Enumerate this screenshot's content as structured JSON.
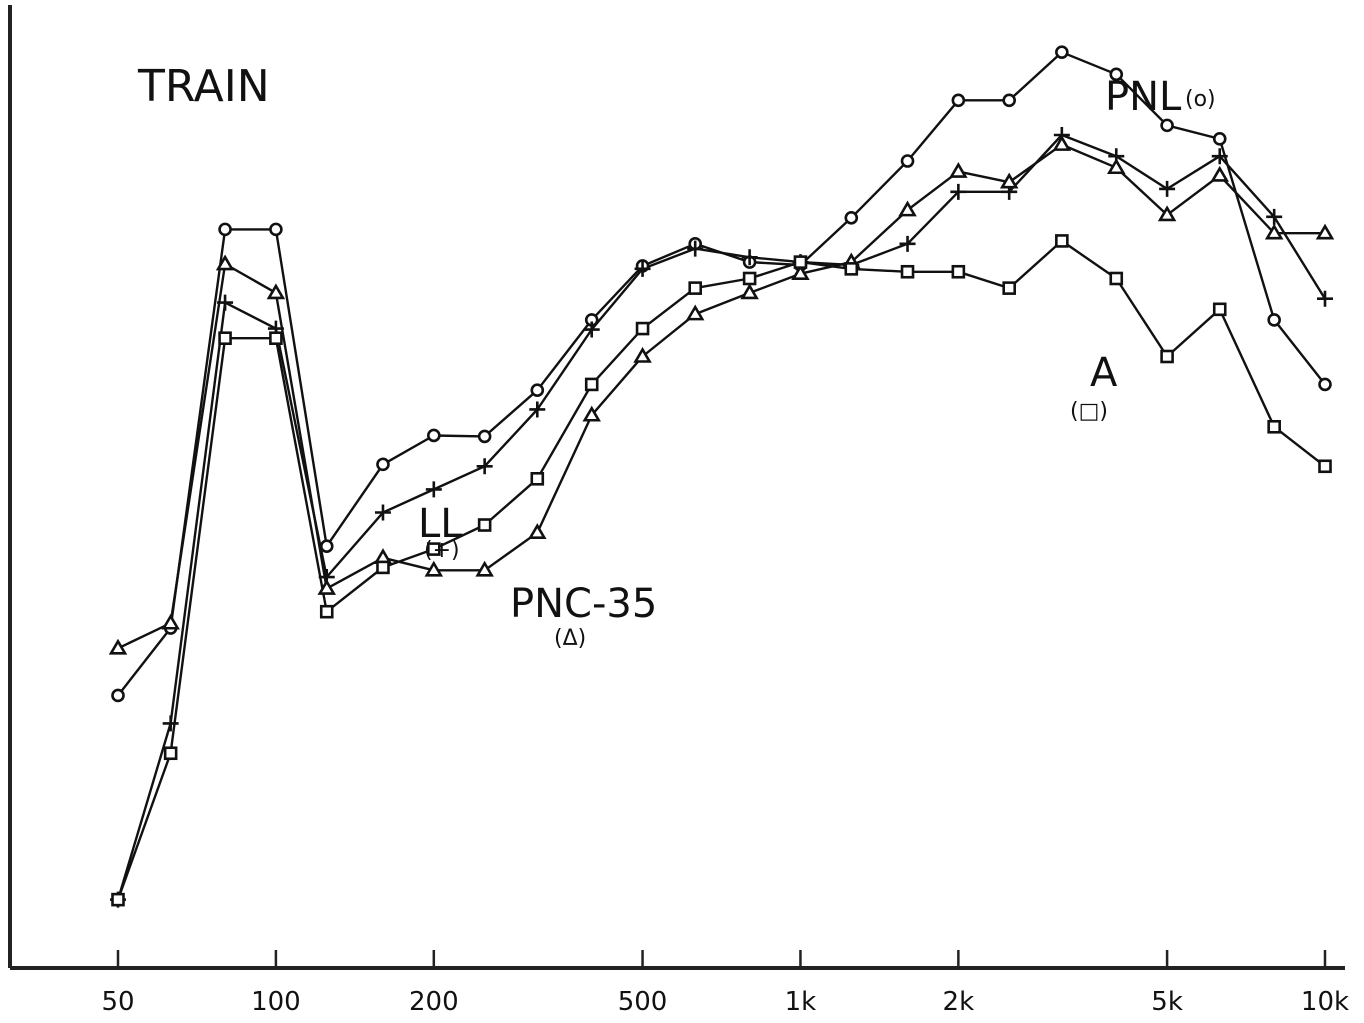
{
  "chart_data": {
    "type": "line",
    "title": "TRAIN",
    "xlabel": "",
    "ylabel": "",
    "x_scale": "log",
    "xlim": [
      50,
      10000
    ],
    "ylim": [
      0,
      100
    ],
    "grid": false,
    "x_ticks": [
      {
        "value": 50,
        "label": "50"
      },
      {
        "value": 100,
        "label": "100"
      },
      {
        "value": 200,
        "label": "200"
      },
      {
        "value": 500,
        "label": "500"
      },
      {
        "value": 1000,
        "label": "1k"
      },
      {
        "value": 2000,
        "label": "2k"
      },
      {
        "value": 5000,
        "label": "5k"
      },
      {
        "value": 10000,
        "label": "10k"
      }
    ],
    "x": [
      50,
      63,
      80,
      100,
      125,
      160,
      200,
      250,
      315,
      400,
      500,
      630,
      800,
      1000,
      1250,
      1600,
      2000,
      2500,
      3150,
      4000,
      5000,
      6300,
      8000,
      10000
    ],
    "series": [
      {
        "name": "PNL",
        "sublabel": "(o)",
        "marker": "circle",
        "values": [
          28.3,
          35.3,
          76.7,
          76.7,
          43.8,
          52.3,
          55.3,
          55.2,
          60.0,
          67.3,
          72.9,
          75.2,
          73.3,
          73.0,
          77.9,
          83.8,
          90.1,
          90.1,
          95.1,
          92.8,
          87.5,
          86.1,
          67.3,
          60.6
        ]
      },
      {
        "name": "LL",
        "sublabel": "(+)",
        "marker": "plus",
        "values": [
          7.1,
          25.4,
          69.1,
          66.4,
          40.6,
          47.3,
          49.7,
          52.1,
          58.0,
          66.3,
          72.6,
          74.7,
          73.8,
          73.3,
          73.0,
          75.2,
          80.6,
          80.6,
          86.5,
          84.3,
          80.9,
          84.3,
          78.0,
          69.5
        ]
      },
      {
        "name": "PNC-35",
        "sublabel": "(Δ)",
        "marker": "triangle",
        "values": [
          33.2,
          35.8,
          73.1,
          70.1,
          39.4,
          42.6,
          41.3,
          41.3,
          45.2,
          57.4,
          63.5,
          67.9,
          70.1,
          72.1,
          73.3,
          78.7,
          82.7,
          81.6,
          85.5,
          83.1,
          78.2,
          82.3,
          76.3,
          76.3
        ]
      },
      {
        "name": "A",
        "sublabel": "(□)",
        "marker": "square",
        "values": [
          7.1,
          22.3,
          65.4,
          65.4,
          37.0,
          41.6,
          43.5,
          46.0,
          50.8,
          60.6,
          66.4,
          70.6,
          71.6,
          73.3,
          72.6,
          72.3,
          72.3,
          70.6,
          75.5,
          71.6,
          63.5,
          68.4,
          56.2,
          52.1
        ]
      }
    ],
    "annotations": [
      {
        "series": "PNL",
        "text": "PNL",
        "sub": "(o)"
      },
      {
        "series": "LL",
        "text": "LL",
        "sub": "(+)"
      },
      {
        "series": "PNC-35",
        "text": "PNC-35",
        "sub": "(Δ)"
      },
      {
        "series": "A",
        "text": "A",
        "sub": "(□)"
      }
    ]
  }
}
